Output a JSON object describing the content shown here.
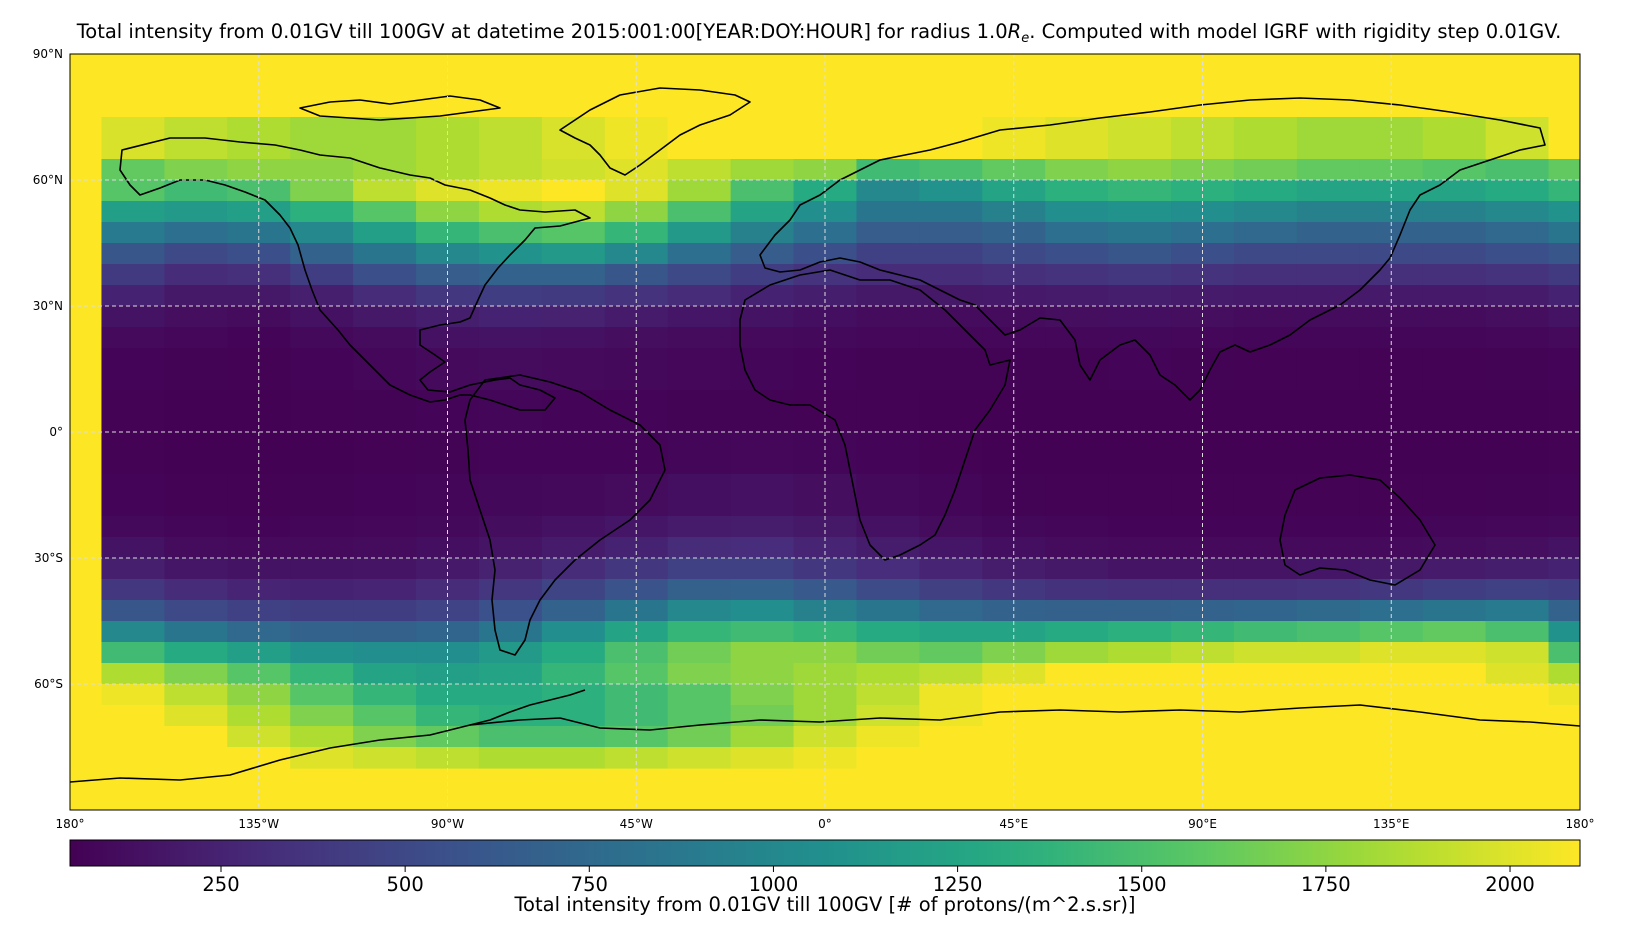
{
  "chart_data": {
    "type": "heatmap",
    "title_prefix": "Total intensity from 0.01GV till 100GV at datetime 2015:001:00[YEAR:DOY:HOUR] for radius 1.0",
    "title_symbol": "R",
    "title_subscript": "e",
    "title_suffix": ". Computed with model IGRF with rigidity step 0.01GV.",
    "projection": "PlateCarree",
    "xlim": [
      -180,
      180
    ],
    "ylim": [
      -90,
      90
    ],
    "x_ticks": [
      {
        "value": -180,
        "label": "180°"
      },
      {
        "value": -135,
        "label": "135°W"
      },
      {
        "value": -90,
        "label": "90°W"
      },
      {
        "value": -45,
        "label": "45°W"
      },
      {
        "value": 0,
        "label": "0°"
      },
      {
        "value": 45,
        "label": "45°E"
      },
      {
        "value": 90,
        "label": "90°E"
      },
      {
        "value": 135,
        "label": "135°E"
      },
      {
        "value": 180,
        "label": "180°"
      }
    ],
    "y_ticks": [
      {
        "value": 90,
        "label": "90°N"
      },
      {
        "value": 60,
        "label": "60°N"
      },
      {
        "value": 30,
        "label": "30°N"
      },
      {
        "value": 0,
        "label": "0°"
      },
      {
        "value": -30,
        "label": "30°S"
      },
      {
        "value": -60,
        "label": "60°S"
      }
    ],
    "grid": true,
    "colormap": "viridis",
    "color_range": [
      45,
      2095
    ],
    "colorbar": {
      "orientation": "horizontal",
      "ticks": [
        250,
        500,
        750,
        1000,
        1250,
        1500,
        1750,
        2000
      ],
      "tick_labels": [
        "250",
        "500",
        "750",
        "1000",
        "1250",
        "1500",
        "1750",
        "2000"
      ],
      "label": "Total intensity from 0.01GV till 100GV [# of protons/(m^2.s.sr)]"
    },
    "cell_size_deg": 15,
    "grid_lon_edges": [
      -180,
      180
    ],
    "grid_lat_top": 75,
    "lat_bands": [
      {
        "lat_top": 75,
        "lat_bottom": 65,
        "values": [
          2095,
          1985,
          1900,
          1850,
          1800,
          1800,
          1850,
          1900,
          1980,
          2050,
          2095,
          2095,
          2095,
          2095,
          2095,
          2050,
          2000,
          1950,
          1900,
          1850,
          1800,
          1800,
          1850,
          1950,
          2095
        ]
      },
      {
        "lat_top": 65,
        "lat_bottom": 60,
        "values": [
          2095,
          1600,
          1700,
          1750,
          1750,
          1800,
          1850,
          1900,
          1950,
          2000,
          1900,
          1800,
          1750,
          1450,
          1500,
          1600,
          1700,
          1750,
          1700,
          1650,
          1600,
          1600,
          1550,
          1500,
          1600
        ]
      },
      {
        "lat_top": 60,
        "lat_bottom": 55,
        "values": [
          2095,
          1550,
          1450,
          1500,
          1700,
          1900,
          2000,
          2050,
          2095,
          2000,
          1800,
          1500,
          1300,
          1000,
          1100,
          1250,
          1350,
          1400,
          1350,
          1300,
          1250,
          1250,
          1250,
          1300,
          1400
        ]
      },
      {
        "lat_top": 55,
        "lat_bottom": 50,
        "values": [
          2095,
          1200,
          1150,
          1200,
          1350,
          1550,
          1750,
          1850,
          1900,
          1750,
          1500,
          1250,
          1050,
          850,
          850,
          950,
          1050,
          1100,
          1050,
          1000,
          950,
          950,
          950,
          1000,
          1100
        ]
      },
      {
        "lat_top": 50,
        "lat_bottom": 45,
        "values": [
          2095,
          900,
          800,
          850,
          1000,
          1200,
          1400,
          1500,
          1550,
          1400,
          1150,
          950,
          800,
          650,
          650,
          700,
          800,
          850,
          800,
          750,
          700,
          700,
          700,
          750,
          850
        ]
      },
      {
        "lat_top": 45,
        "lat_bottom": 40,
        "values": [
          2095,
          600,
          500,
          550,
          700,
          850,
          1000,
          1100,
          1150,
          1000,
          800,
          650,
          550,
          450,
          450,
          500,
          550,
          600,
          550,
          500,
          500,
          500,
          500,
          550,
          600
        ]
      },
      {
        "lat_top": 40,
        "lat_bottom": 35,
        "values": [
          2095,
          400,
          300,
          320,
          420,
          550,
          650,
          700,
          700,
          600,
          500,
          420,
          350,
          300,
          300,
          320,
          350,
          380,
          350,
          320,
          320,
          320,
          320,
          350,
          400
        ]
      },
      {
        "lat_top": 35,
        "lat_bottom": 30,
        "values": [
          2095,
          250,
          180,
          180,
          230,
          300,
          380,
          420,
          400,
          350,
          300,
          250,
          220,
          180,
          180,
          190,
          200,
          220,
          200,
          190,
          190,
          190,
          190,
          200,
          250
        ]
      },
      {
        "lat_top": 30,
        "lat_bottom": 25,
        "values": [
          2095,
          150,
          120,
          110,
          140,
          180,
          220,
          250,
          240,
          200,
          170,
          150,
          130,
          110,
          110,
          110,
          120,
          130,
          120,
          110,
          110,
          110,
          110,
          120,
          150
        ]
      },
      {
        "lat_top": 25,
        "lat_bottom": 20,
        "values": [
          2095,
          100,
          80,
          70,
          90,
          110,
          140,
          150,
          140,
          120,
          110,
          100,
          90,
          80,
          80,
          80,
          80,
          85,
          80,
          75,
          75,
          75,
          75,
          80,
          100
        ]
      },
      {
        "lat_top": 20,
        "lat_bottom": 10,
        "values": [
          2095,
          70,
          60,
          55,
          65,
          80,
          100,
          110,
          100,
          90,
          80,
          75,
          70,
          60,
          60,
          60,
          60,
          65,
          60,
          55,
          55,
          55,
          55,
          60,
          70
        ]
      },
      {
        "lat_top": 10,
        "lat_bottom": 0,
        "values": [
          2095,
          55,
          50,
          50,
          55,
          60,
          70,
          75,
          70,
          65,
          60,
          60,
          55,
          55,
          50,
          50,
          50,
          50,
          50,
          50,
          50,
          50,
          50,
          50,
          55
        ]
      },
      {
        "lat_top": 0,
        "lat_bottom": -10,
        "values": [
          2095,
          55,
          50,
          50,
          50,
          55,
          60,
          65,
          65,
          70,
          75,
          80,
          75,
          65,
          55,
          50,
          50,
          50,
          50,
          50,
          50,
          50,
          50,
          50,
          55
        ]
      },
      {
        "lat_top": -10,
        "lat_bottom": -20,
        "values": [
          2095,
          65,
          55,
          55,
          60,
          65,
          75,
          85,
          95,
          110,
          130,
          140,
          120,
          95,
          75,
          60,
          55,
          55,
          55,
          55,
          55,
          55,
          55,
          60,
          65
        ]
      },
      {
        "lat_top": -20,
        "lat_bottom": -25,
        "values": [
          2095,
          90,
          75,
          70,
          75,
          80,
          95,
          115,
          140,
          170,
          200,
          210,
          180,
          140,
          110,
          85,
          75,
          70,
          70,
          70,
          70,
          70,
          75,
          80,
          90
        ]
      },
      {
        "lat_top": -25,
        "lat_bottom": -30,
        "values": [
          2095,
          150,
          110,
          100,
          100,
          110,
          130,
          160,
          200,
          250,
          300,
          310,
          260,
          210,
          170,
          130,
          110,
          100,
          100,
          100,
          100,
          100,
          110,
          120,
          150
        ]
      },
      {
        "lat_top": -30,
        "lat_bottom": -35,
        "values": [
          2095,
          230,
          170,
          150,
          150,
          160,
          190,
          240,
          300,
          380,
          450,
          450,
          380,
          310,
          260,
          210,
          180,
          160,
          160,
          160,
          170,
          180,
          200,
          220,
          250
        ]
      },
      {
        "lat_top": -35,
        "lat_bottom": -40,
        "values": [
          2095,
          380,
          300,
          260,
          250,
          260,
          300,
          370,
          470,
          580,
          680,
          700,
          620,
          520,
          440,
          380,
          340,
          320,
          320,
          330,
          350,
          380,
          420,
          450,
          420
        ]
      },
      {
        "lat_top": -40,
        "lat_bottom": -45,
        "values": [
          2095,
          600,
          500,
          450,
          420,
          420,
          460,
          560,
          700,
          850,
          1000,
          1050,
          950,
          850,
          750,
          700,
          680,
          680,
          700,
          720,
          760,
          800,
          850,
          900,
          700
        ]
      },
      {
        "lat_top": -45,
        "lat_bottom": -50,
        "values": [
          2095,
          1000,
          850,
          750,
          700,
          680,
          720,
          850,
          1050,
          1250,
          1400,
          1450,
          1400,
          1300,
          1250,
          1250,
          1300,
          1350,
          1400,
          1450,
          1500,
          1550,
          1600,
          1500,
          1100
        ]
      },
      {
        "lat_top": -50,
        "lat_bottom": -55,
        "values": [
          2095,
          1450,
          1300,
          1200,
          1100,
          1050,
          1050,
          1150,
          1300,
          1500,
          1650,
          1750,
          1750,
          1650,
          1600,
          1700,
          1800,
          1850,
          1900,
          1950,
          1950,
          2000,
          2000,
          1950,
          1500
        ]
      },
      {
        "lat_top": -55,
        "lat_bottom": -60,
        "values": [
          2095,
          1850,
          1700,
          1550,
          1400,
          1250,
          1200,
          1250,
          1400,
          1550,
          1700,
          1750,
          1800,
          1850,
          1900,
          2000,
          2095,
          2095,
          2095,
          2095,
          2095,
          2095,
          2095,
          2000,
          1850
        ]
      },
      {
        "lat_top": -60,
        "lat_bottom": -65,
        "values": [
          2095,
          2050,
          1900,
          1750,
          1550,
          1400,
          1300,
          1300,
          1350,
          1450,
          1550,
          1700,
          1800,
          1900,
          2050,
          2095,
          2095,
          2095,
          2095,
          2095,
          2095,
          2095,
          2095,
          2095,
          2050
        ]
      },
      {
        "lat_top": -65,
        "lat_bottom": -70,
        "values": [
          2095,
          2095,
          2000,
          1850,
          1700,
          1550,
          1400,
          1350,
          1350,
          1450,
          1550,
          1650,
          1800,
          1950,
          2050,
          2095,
          2095,
          2095,
          2095,
          2095,
          2095,
          2095,
          2095,
          2095,
          2095
        ]
      },
      {
        "lat_top": -70,
        "lat_bottom": -75,
        "values": [
          2095,
          2095,
          2095,
          1950,
          1850,
          1700,
          1600,
          1500,
          1500,
          1550,
          1650,
          1800,
          1950,
          2050,
          2095,
          2095,
          2095,
          2095,
          2095,
          2095,
          2095,
          2095,
          2095,
          2095,
          2095
        ]
      },
      {
        "lat_top": -75,
        "lat_bottom": -80,
        "values": [
          2095,
          2095,
          2095,
          2095,
          2000,
          1950,
          1900,
          1850,
          1850,
          1900,
          1950,
          2000,
          2050,
          2095,
          2095,
          2095,
          2095,
          2095,
          2095,
          2095,
          2095,
          2095,
          2095,
          2095,
          2095
        ]
      }
    ],
    "polar_fill_value": 2095,
    "coastline_color": "#000000",
    "gridline_color": "#dddddd"
  }
}
